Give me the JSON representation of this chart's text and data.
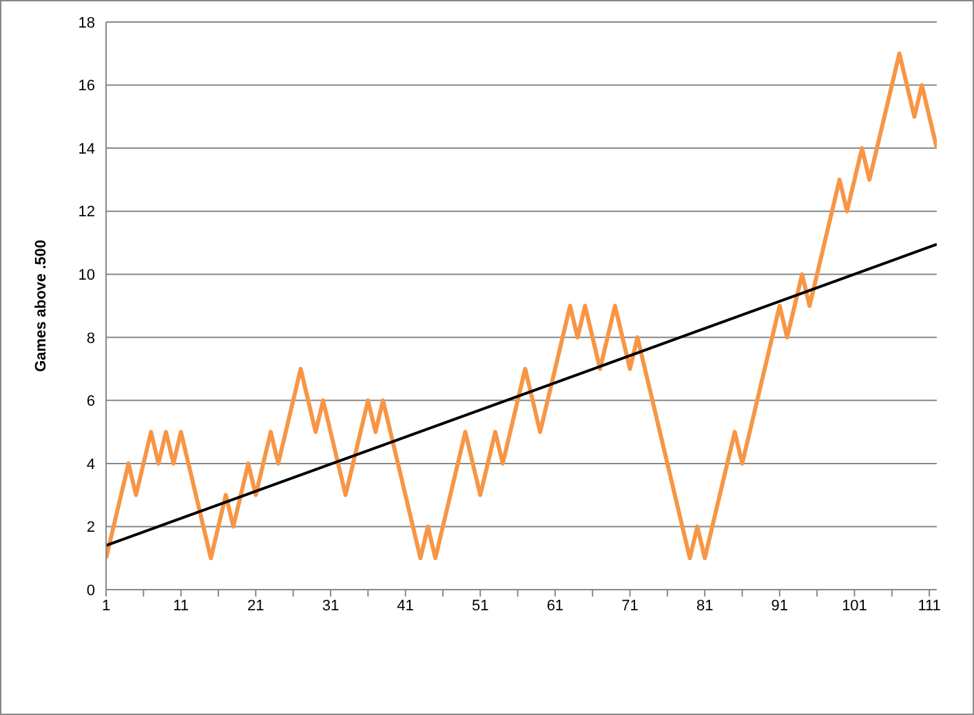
{
  "chart_data": {
    "type": "line",
    "ylabel": "Games above .500",
    "xlim": [
      1,
      112
    ],
    "xticks": [
      1,
      {
        "value": 6,
        "label": null
      },
      11,
      {
        "value": 16,
        "label": null
      },
      21,
      {
        "value": 26,
        "label": null
      },
      31,
      {
        "value": 36,
        "label": null
      },
      41,
      {
        "value": 46,
        "label": null
      },
      51,
      {
        "value": 56,
        "label": null
      },
      61,
      {
        "value": 66,
        "label": null
      },
      71,
      {
        "value": 76,
        "label": null
      },
      81,
      {
        "value": 86,
        "label": null
      },
      91,
      {
        "value": 96,
        "label": null
      },
      101,
      {
        "value": 106,
        "label": null
      },
      111
    ],
    "ylim": [
      0,
      18
    ],
    "yticks": [
      0,
      2,
      4,
      6,
      8,
      10,
      12,
      14,
      16,
      18
    ],
    "grid": "y",
    "legend": false,
    "marker": "none",
    "line_style": "solid",
    "series": [
      {
        "color": "#f79646",
        "x": [
          1,
          4,
          5,
          7,
          8,
          9,
          10,
          11,
          15,
          17,
          18,
          20,
          21,
          23,
          24,
          27,
          29,
          30,
          33,
          36,
          37,
          38,
          43,
          44,
          45,
          49,
          51,
          53,
          54,
          57,
          59,
          63,
          64,
          65,
          67,
          69,
          71,
          72,
          79,
          80,
          81,
          85,
          86,
          91,
          92,
          94,
          95,
          99,
          100,
          102,
          103,
          107,
          109,
          110,
          112
        ],
        "values": [
          1,
          4,
          3,
          5,
          4,
          5,
          4,
          5,
          1,
          3,
          2,
          4,
          3,
          5,
          4,
          7,
          5,
          6,
          3,
          6,
          5,
          6,
          1,
          2,
          1,
          5,
          3,
          5,
          4,
          7,
          5,
          9,
          8,
          9,
          7,
          9,
          7,
          8,
          1,
          2,
          1,
          5,
          4,
          9,
          8,
          10,
          9,
          13,
          12,
          14,
          13,
          17,
          15,
          16,
          14
        ]
      },
      {
        "type": "line",
        "color": "#000000",
        "x": [
          1,
          112
        ],
        "values": [
          1.4,
          10.95
        ]
      }
    ]
  }
}
